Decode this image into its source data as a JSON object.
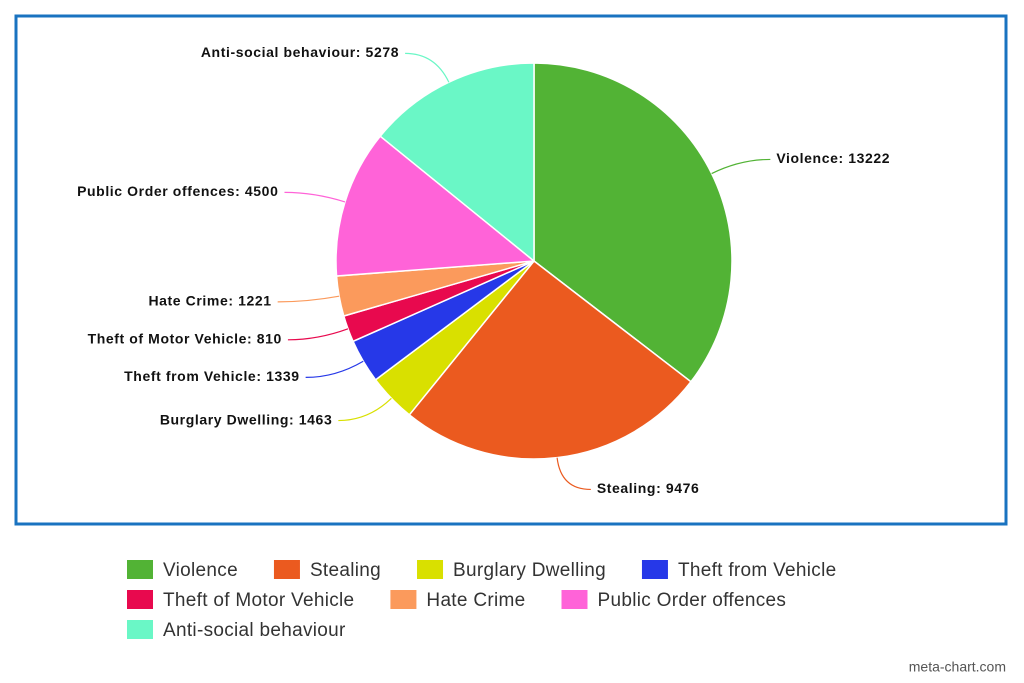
{
  "chart_data": {
    "type": "pie",
    "categories": [
      "Violence",
      "Stealing",
      "Burglary Dwelling",
      "Theft from Vehicle",
      "Theft of Motor Vehicle",
      "Hate Crime",
      "Public Order offences",
      "Anti-social behaviour"
    ],
    "values": [
      13222,
      9476,
      1463,
      1339,
      810,
      1221,
      4500,
      5278
    ],
    "value_labels": [
      "Violence: 13222",
      "Stealing: 9476",
      "Burglary Dwelling: 1463",
      "Theft from Vehicle: 1339",
      "Theft of Motor Vehicle: 810",
      "Hate Crime: 1221",
      "Public Order offences: 4500",
      "Anti-social behaviour: 5278"
    ],
    "colors": [
      "#52b335",
      "#eb5a1f",
      "#d9e000",
      "#2638e8",
      "#e8094e",
      "#fb9a5c",
      "#ff63d8",
      "#6af7c6"
    ],
    "legend": "bottom",
    "credit": "meta-chart.com"
  }
}
